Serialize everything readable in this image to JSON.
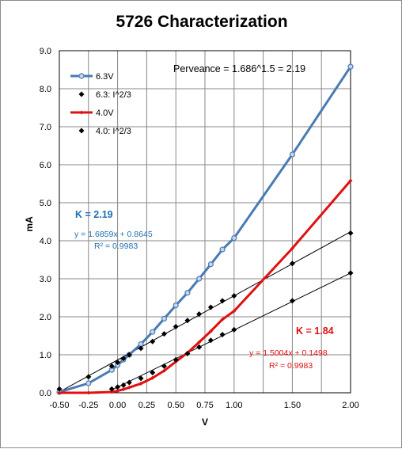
{
  "chart_data": {
    "type": "scatter",
    "title": "5726 Characterization",
    "xlabel": "V",
    "ylabel": "mA",
    "xlim": [
      -0.5,
      2.0
    ],
    "ylim": [
      0.0,
      9.0
    ],
    "x_ticks": [
      "-0.50",
      "-0.25",
      "0.00",
      "0.25",
      "0.50",
      "0.75",
      "1.00",
      "1.25",
      "1.50",
      "1.75",
      "2.00"
    ],
    "x_tick_values": [
      -0.5,
      -0.25,
      0.0,
      0.25,
      0.5,
      0.75,
      1.0,
      1.25,
      1.5,
      1.75,
      2.0
    ],
    "y_ticks": [
      "0.0",
      "1.0",
      "2.0",
      "3.0",
      "4.0",
      "5.0",
      "6.0",
      "7.0",
      "8.0",
      "9.0"
    ],
    "y_tick_values": [
      0,
      1,
      2,
      3,
      4,
      5,
      6,
      7,
      8,
      9
    ],
    "x_tick_labels_shown": [
      "-0.50",
      "-0.25",
      "0.00",
      "0.25",
      "0.50",
      "0.75",
      "1.00",
      "1.50",
      "2.00"
    ],
    "grid": true,
    "legend_position": "top-left",
    "series": [
      {
        "name": "6.3V",
        "style": "line-open-circle",
        "color": "#4a7ab5",
        "x": [
          -0.5,
          -0.25,
          -0.05,
          0.0,
          0.05,
          0.1,
          0.2,
          0.3,
          0.4,
          0.5,
          0.6,
          0.7,
          0.8,
          0.9,
          1.0,
          1.5,
          2.0
        ],
        "y": [
          0.02,
          0.25,
          0.6,
          0.73,
          0.87,
          1.0,
          1.28,
          1.6,
          1.95,
          2.3,
          2.63,
          3.0,
          3.38,
          3.77,
          4.07,
          6.27,
          8.58
        ]
      },
      {
        "name": "6.3: I^2/3",
        "style": "marker-diamond",
        "color": "#000000",
        "x": [
          -0.5,
          -0.25,
          -0.05,
          0.0,
          0.05,
          0.1,
          0.2,
          0.3,
          0.4,
          0.5,
          0.6,
          0.7,
          0.8,
          0.9,
          1.0,
          1.5,
          2.0
        ],
        "y": [
          0.1,
          0.42,
          0.7,
          0.8,
          0.9,
          1.0,
          1.17,
          1.35,
          1.55,
          1.74,
          1.9,
          2.07,
          2.25,
          2.42,
          2.55,
          3.4,
          4.2
        ]
      },
      {
        "name": "4.0V",
        "style": "line-filled-diamond",
        "color": "#e01010",
        "x": [
          -0.5,
          -0.25,
          -0.05,
          0.0,
          0.05,
          0.1,
          0.2,
          0.3,
          0.4,
          0.5,
          0.6,
          0.7,
          0.8,
          0.9,
          1.0,
          1.5,
          2.0
        ],
        "y": [
          0.0,
          0.0,
          0.02,
          0.05,
          0.09,
          0.14,
          0.24,
          0.39,
          0.58,
          0.82,
          1.05,
          1.33,
          1.62,
          1.93,
          2.15,
          3.8,
          5.58
        ]
      },
      {
        "name": "4.0: I^2/3",
        "style": "marker-diamond",
        "color": "#000000",
        "x": [
          -0.05,
          0.0,
          0.05,
          0.1,
          0.2,
          0.3,
          0.4,
          0.5,
          0.6,
          0.7,
          0.8,
          0.9,
          1.0,
          1.5,
          2.0
        ],
        "y": [
          0.1,
          0.15,
          0.2,
          0.27,
          0.38,
          0.53,
          0.7,
          0.87,
          1.03,
          1.2,
          1.38,
          1.53,
          1.66,
          2.42,
          3.15
        ]
      }
    ],
    "trendlines": [
      {
        "color": "#000000",
        "x": [
          -0.5,
          2.0
        ],
        "y": [
          0.0215,
          4.2363
        ]
      },
      {
        "color": "#000000",
        "x": [
          -0.05,
          2.0
        ],
        "y": [
          0.0748,
          3.1506
        ]
      }
    ],
    "annotations": {
      "perveance": "Perveance = 1.686^1.5 = 2.19",
      "k_blue": "K = 2.19",
      "eq_blue": "y = 1.6859x + 0.8645",
      "r2_blue": "R² = 0.9983",
      "k_red": "K = 1.84",
      "eq_red": "y = 1.5004x + 0.1498",
      "r2_red": "R² = 0.9983"
    }
  }
}
